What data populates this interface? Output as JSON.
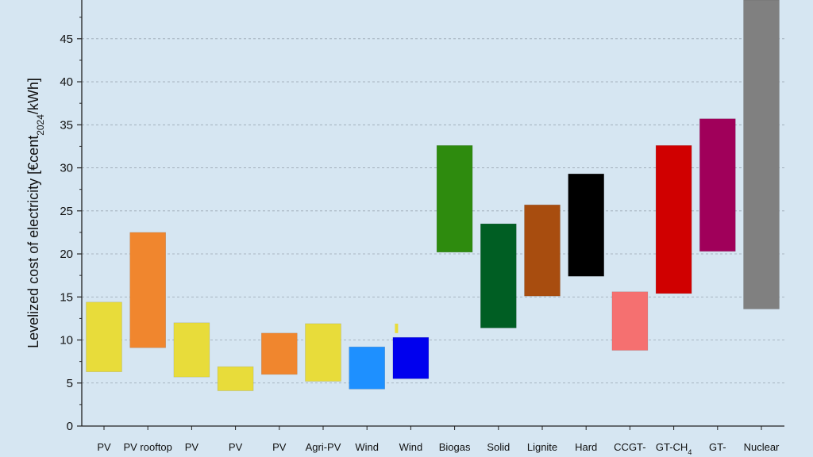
{
  "chart_data": {
    "type": "bar",
    "subtype": "floating-range",
    "ylabel": "Levelized cost of electricity [€cent2024/kWh]",
    "ylabel_parts": {
      "pre": "Levelized cost of electricity [€cent",
      "sub": "2024",
      "post": "/kWh]"
    },
    "ylim": [
      0,
      49.5
    ],
    "yticks": [
      0,
      5,
      10,
      15,
      20,
      25,
      30,
      35,
      40,
      45
    ],
    "grid": "horizontal dashed",
    "categories": [
      {
        "label": "PV",
        "low": 6.3,
        "high": 14.4,
        "color": "#e8dc3a"
      },
      {
        "label": "PV rooftop",
        "low": 9.1,
        "high": 22.5,
        "color": "#f0862e"
      },
      {
        "label": "PV",
        "low": 5.7,
        "high": 12.0,
        "color": "#e8dc3a"
      },
      {
        "label": "PV",
        "low": 4.1,
        "high": 6.9,
        "color": "#e8dc3a"
      },
      {
        "label": "PV",
        "low": 6.0,
        "high": 10.8,
        "color": "#f0862e"
      },
      {
        "label": "Agri-PV",
        "low": 5.2,
        "high": 11.9,
        "color": "#e8dc3a"
      },
      {
        "label": "Wind",
        "low": 4.3,
        "high": 9.2,
        "color": "#1e90ff"
      },
      {
        "label": "Wind",
        "low": 5.5,
        "high": 10.3,
        "color": "#0000ee"
      },
      {
        "label": "Biogas",
        "low": 20.2,
        "high": 32.6,
        "color": "#2e8b0e"
      },
      {
        "label": "Solid",
        "low": 11.4,
        "high": 23.5,
        "color": "#005e23"
      },
      {
        "label": "Lignite",
        "low": 15.1,
        "high": 25.7,
        "color": "#a84d0f"
      },
      {
        "label": "Hard",
        "low": 17.4,
        "high": 29.3,
        "color": "#000000"
      },
      {
        "label": "CCGT-",
        "low": 8.8,
        "high": 15.6,
        "color": "#f57070"
      },
      {
        "label": "GT-CH",
        "low": 15.4,
        "high": 32.6,
        "color": "#d00000",
        "label_sub": "4"
      },
      {
        "label": "GT-",
        "low": 20.3,
        "high": 35.7,
        "color": "#a0005a"
      },
      {
        "label": "Nuclear",
        "low": 13.6,
        "high": 49.5,
        "color": "#808080"
      }
    ],
    "annotations": [
      {
        "type": "small-bar",
        "near_category": 7,
        "low": 10.8,
        "high": 11.9,
        "color": "#e8dc3a"
      }
    ]
  }
}
